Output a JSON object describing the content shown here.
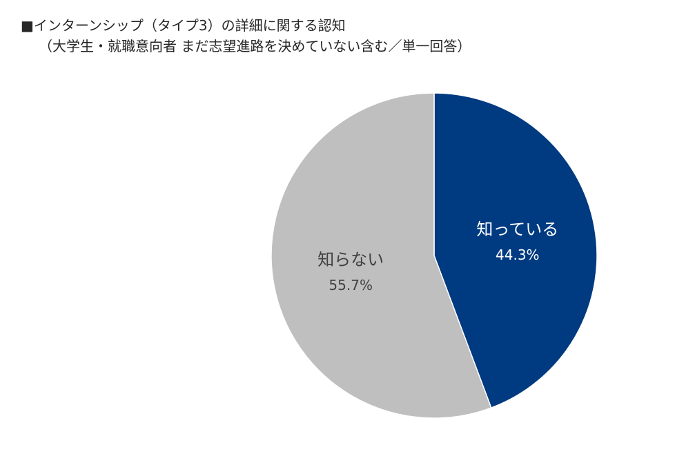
{
  "chart_data": {
    "type": "pie",
    "title": "■インターンシップ（タイプ3）の詳細に関する認知",
    "subtitle": "（大学生・就職意向者 まだ志望進路を決めていない含む／単一回答）",
    "slices": [
      {
        "label": "知っている",
        "value": 44.3,
        "value_label": "44.3%",
        "color": "#003a80",
        "text_color": "#ffffff"
      },
      {
        "label": "知らない",
        "value": 55.7,
        "value_label": "55.7%",
        "color": "#bfbfbf",
        "text_color": "#404040"
      }
    ],
    "start": "12 o'clock",
    "direction": "clockwise",
    "legend": "none"
  }
}
